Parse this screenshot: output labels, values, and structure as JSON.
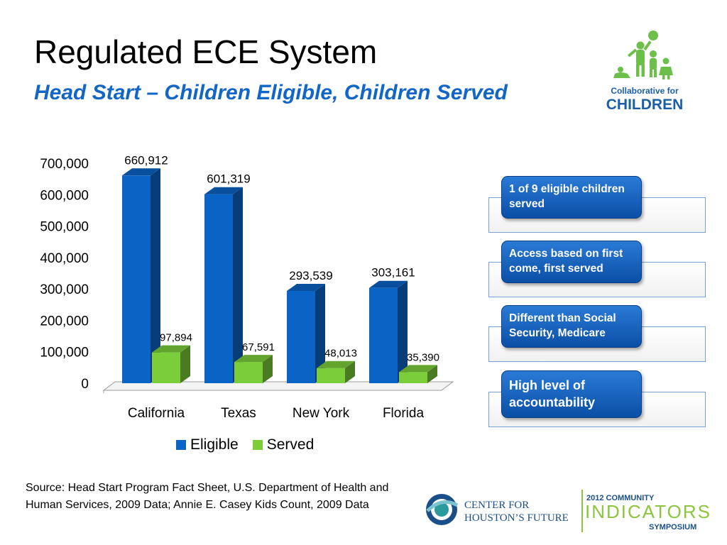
{
  "slide": {
    "title": "Regulated ECE System",
    "subtitle": "Head Start – Children Eligible, Children Served"
  },
  "chart_data": {
    "type": "bar",
    "categories": [
      "California",
      "Texas",
      "New York",
      "Florida"
    ],
    "series": [
      {
        "name": "Eligible",
        "values": [
          660912,
          601319,
          293539,
          303161
        ],
        "labels": [
          "660,912",
          "601,319",
          "293,539",
          "303,161"
        ],
        "color": "#0a64c6"
      },
      {
        "name": "Served",
        "values": [
          97894,
          67591,
          48013,
          35390
        ],
        "labels": [
          "97,894",
          "67,591",
          "48,013",
          "35,390"
        ],
        "color": "#7ccd3a"
      }
    ],
    "yticks": [
      "0",
      "100,000",
      "200,000",
      "300,000",
      "400,000",
      "500,000",
      "600,000",
      "700,000"
    ],
    "ylim": [
      0,
      700000
    ],
    "legend": "bottom",
    "grid": false
  },
  "callouts": [
    {
      "text": "1 of 9 eligible children served"
    },
    {
      "text": "Access based on first come, first served"
    },
    {
      "text": "Different than Social Security, Medicare"
    },
    {
      "text": "High level of accountability"
    }
  ],
  "source": "Source:  Head Start Program Fact Sheet, U.S. Department of Health and Human Services, 2009 Data; Annie E. Casey Kids Count, 2009 Data",
  "logos": {
    "cfc": {
      "line1": "Collaborative for",
      "line2": "CHILDREN",
      "color": "#1a5fa8",
      "figure_color": "#6cc04a"
    },
    "houston": {
      "line1": "CENTER FOR",
      "line2": "HOUSTON’S FUTURE",
      "color": "#1a4f8a"
    },
    "symposium": {
      "line1": "2012 COMMUNITY",
      "line2": "INDICATORS",
      "line3": "SYMPOSIUM",
      "accent": "#8cc63f"
    }
  }
}
